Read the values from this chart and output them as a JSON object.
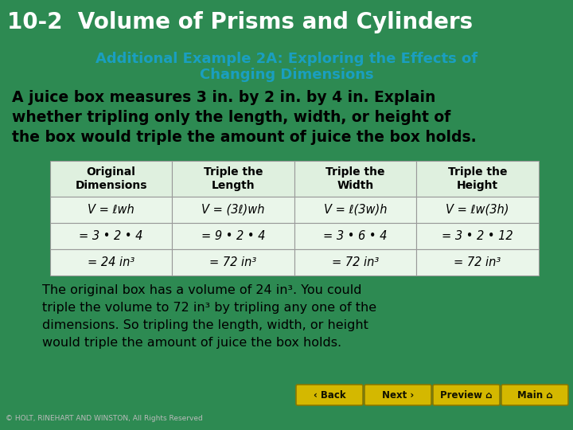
{
  "title": "10-2  Volume of Prisms and Cylinders",
  "title_bg": "#0a0a0a",
  "title_color": "#ffffff",
  "subtitle_line1": "Additional Example 2A: Exploring the Effects of",
  "subtitle_line2": "Changing Dimensions",
  "subtitle_color": "#1a9fc0",
  "body_line1": "A juice box measures 3 in. by 2 in. by 4 in. Explain",
  "body_line2": "whether tripling only the length, width, or height of",
  "body_line3": "the box would triple the amount of juice the box holds.",
  "body_color": "#000000",
  "content_bg": "#ffffff",
  "green_bg": "#2d8a52",
  "table_headers": [
    "Original\nDimensions",
    "Triple the\nLength",
    "Triple the\nWidth",
    "Triple the\nHeight"
  ],
  "table_row1": [
    "V = ℓwh",
    "V = (3ℓ)wh",
    "V = ℓ(3w)h",
    "V = ℓw(3h)"
  ],
  "table_row2": [
    "= 3 • 2 • 4",
    "= 9 • 2 • 4",
    "= 3 • 6 • 4",
    "= 3 • 2 • 12"
  ],
  "table_row3": [
    "= 24 in³",
    "= 72 in³",
    "= 72 in³",
    "= 72 in³"
  ],
  "table_header_bg": "#dff0df",
  "table_cell_bg": "#eaf6ea",
  "table_border": "#999999",
  "conclusion_line1": "The original box has a volume of 24 in³. You could",
  "conclusion_line2": "triple the volume to 72 in³ by tripling any one of the",
  "conclusion_line3": "dimensions. So tripling the length, width, or height",
  "conclusion_line4": "would triple the amount of juice the box holds.",
  "conclusion_color": "#000000",
  "nav_color": "#d4b800",
  "nav_border": "#8a7800",
  "footer_text": "© HOLT, RINEHART AND WINSTON, All Rights Reserved",
  "footer_bg": "#0a0a0a",
  "footer_color": "#bbbbbb"
}
